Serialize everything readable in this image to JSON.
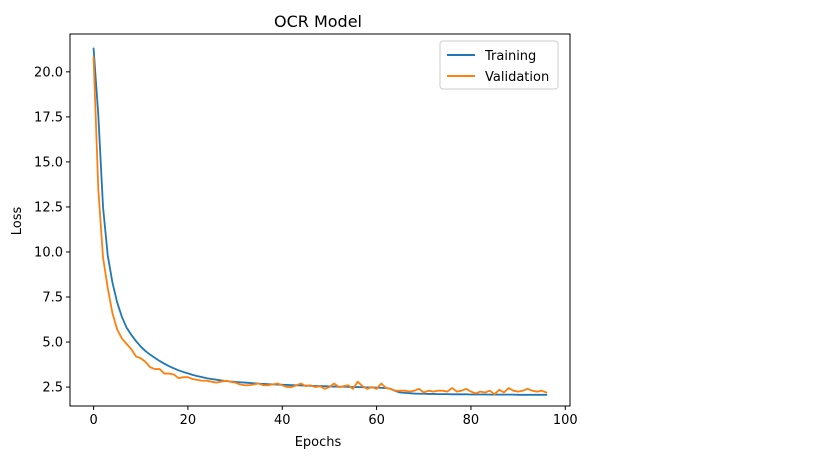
{
  "chart_data": {
    "type": "line",
    "title": "OCR Model",
    "xlabel": "Epochs",
    "ylabel": "Loss",
    "xlim": [
      -5,
      101
    ],
    "ylim": [
      1.45,
      22.1
    ],
    "xticks": [
      0,
      20,
      40,
      60,
      80,
      100
    ],
    "yticks": [
      2.5,
      5.0,
      7.5,
      10.0,
      12.5,
      15.0,
      17.5,
      20.0
    ],
    "ytick_labels": [
      "2.5",
      "5.0",
      "7.5",
      "10.0",
      "12.5",
      "15.0",
      "17.5",
      "20.0"
    ],
    "grid": false,
    "legend_position": "upper right",
    "x": [
      0,
      1,
      2,
      3,
      4,
      5,
      6,
      7,
      8,
      9,
      10,
      11,
      12,
      13,
      14,
      15,
      16,
      17,
      18,
      19,
      20,
      21,
      22,
      23,
      24,
      25,
      26,
      27,
      28,
      29,
      30,
      31,
      32,
      33,
      34,
      35,
      36,
      37,
      38,
      39,
      40,
      41,
      42,
      43,
      44,
      45,
      46,
      47,
      48,
      49,
      50,
      51,
      52,
      53,
      54,
      55,
      56,
      57,
      58,
      59,
      60,
      61,
      62,
      63,
      64,
      65,
      66,
      67,
      68,
      69,
      70,
      71,
      72,
      73,
      74,
      75,
      76,
      77,
      78,
      79,
      80,
      81,
      82,
      83,
      84,
      85,
      86,
      87,
      88,
      89,
      90,
      91,
      92,
      93,
      94,
      95,
      96
    ],
    "series": [
      {
        "name": "Training",
        "color": "#1f77b4",
        "values": [
          21.3,
          17.6,
          12.5,
          9.8,
          8.3,
          7.2,
          6.4,
          5.8,
          5.4,
          5.05,
          4.75,
          4.5,
          4.3,
          4.12,
          3.95,
          3.8,
          3.66,
          3.54,
          3.43,
          3.34,
          3.26,
          3.18,
          3.11,
          3.05,
          2.99,
          2.95,
          2.91,
          2.87,
          2.84,
          2.81,
          2.79,
          2.77,
          2.75,
          2.73,
          2.71,
          2.69,
          2.68,
          2.66,
          2.65,
          2.64,
          2.63,
          2.62,
          2.61,
          2.6,
          2.59,
          2.58,
          2.57,
          2.56,
          2.56,
          2.55,
          2.54,
          2.53,
          2.52,
          2.52,
          2.51,
          2.5,
          2.5,
          2.49,
          2.48,
          2.48,
          2.47,
          2.46,
          2.45,
          2.4,
          2.28,
          2.2,
          2.18,
          2.16,
          2.14,
          2.13,
          2.13,
          2.12,
          2.12,
          2.11,
          2.11,
          2.11,
          2.1,
          2.1,
          2.1,
          2.1,
          2.09,
          2.09,
          2.09,
          2.09,
          2.08,
          2.08,
          2.08,
          2.08,
          2.08,
          2.08,
          2.07,
          2.07,
          2.07,
          2.07,
          2.07,
          2.07,
          2.07
        ]
      },
      {
        "name": "Validation",
        "color": "#ff7f0e",
        "values": [
          20.8,
          13.5,
          9.7,
          8.0,
          6.6,
          5.7,
          5.2,
          4.9,
          4.6,
          4.2,
          4.1,
          3.9,
          3.6,
          3.5,
          3.5,
          3.25,
          3.25,
          3.2,
          3.0,
          3.05,
          3.05,
          2.95,
          2.9,
          2.85,
          2.85,
          2.8,
          2.75,
          2.8,
          2.85,
          2.8,
          2.75,
          2.65,
          2.6,
          2.6,
          2.65,
          2.7,
          2.6,
          2.6,
          2.65,
          2.7,
          2.6,
          2.5,
          2.5,
          2.6,
          2.7,
          2.55,
          2.6,
          2.5,
          2.55,
          2.4,
          2.5,
          2.7,
          2.5,
          2.55,
          2.6,
          2.4,
          2.8,
          2.55,
          2.4,
          2.5,
          2.4,
          2.7,
          2.45,
          2.4,
          2.3,
          2.3,
          2.3,
          2.25,
          2.3,
          2.4,
          2.2,
          2.3,
          2.25,
          2.3,
          2.3,
          2.25,
          2.45,
          2.25,
          2.3,
          2.4,
          2.25,
          2.15,
          2.25,
          2.2,
          2.3,
          2.1,
          2.35,
          2.2,
          2.45,
          2.3,
          2.25,
          2.3,
          2.4,
          2.3,
          2.25,
          2.3,
          2.2
        ]
      }
    ]
  }
}
